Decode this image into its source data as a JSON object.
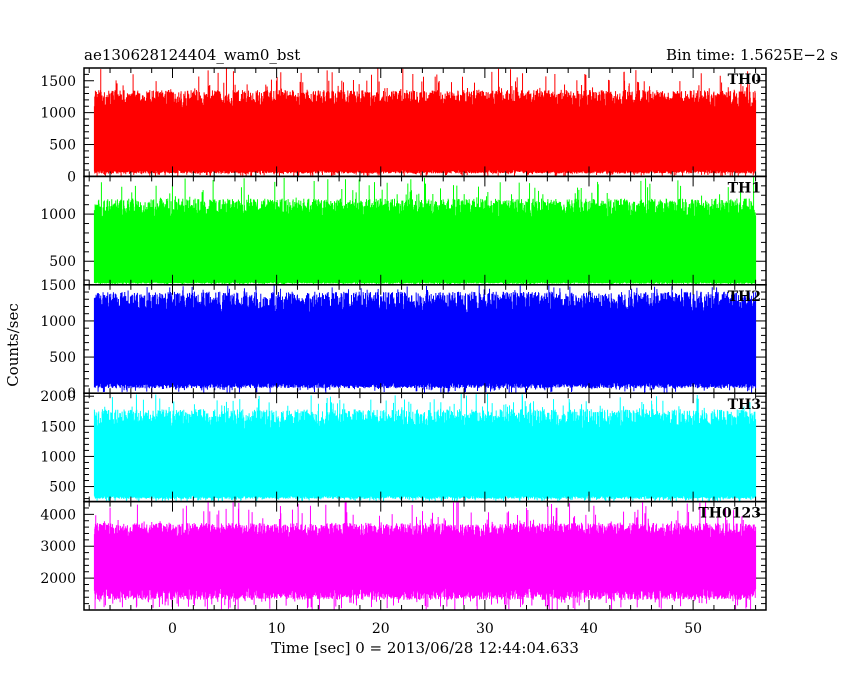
{
  "header": {
    "left": "ae130628124404_wam0_bst",
    "right": "Bin time: 1.5625E−2 s"
  },
  "chart_data": {
    "type": "line",
    "title": "ae130628124404_wam0_bst",
    "subtitle": "Bin time: 1.5625E−2 s",
    "xlabel": "Time [sec] 0 = 2013/06/28 12:44:04.633",
    "ylabel": "Counts/sec",
    "xlim": [
      -8.5,
      57
    ],
    "xticks": [
      0,
      10,
      20,
      30,
      40,
      50
    ],
    "data_x_range": [
      -7.5,
      56
    ],
    "bin_time": 0.015625,
    "grid": false,
    "legend": "none",
    "panels": [
      {
        "name": "TH0",
        "color": "#ff0000",
        "ylim": [
          0,
          1700
        ],
        "yticks": [
          0,
          500,
          1000,
          1500
        ],
        "band": [
          100,
          1150
        ],
        "spike_max": 1700,
        "spike_min": 0
      },
      {
        "name": "TH1",
        "color": "#00ff00",
        "ylim": [
          250,
          1400
        ],
        "yticks": [
          500,
          1000
        ],
        "band": [
          280,
          1020
        ],
        "spike_max": 1400,
        "spike_min": 250
      },
      {
        "name": "TH2",
        "color": "#0000ff",
        "ylim": [
          0,
          1500
        ],
        "yticks": [
          0,
          500,
          1000,
          1500
        ],
        "band": [
          150,
          1200
        ],
        "spike_max": 1500,
        "spike_min": 0
      },
      {
        "name": "TH3",
        "color": "#00ffff",
        "ylim": [
          250,
          2050
        ],
        "yticks": [
          500,
          1000,
          1500,
          2000
        ],
        "band": [
          350,
          1550
        ],
        "spike_max": 2050,
        "spike_min": 250
      },
      {
        "name": "TH0123",
        "color": "#ff00ff",
        "ylim": [
          1000,
          4400
        ],
        "yticks": [
          2000,
          3000,
          4000
        ],
        "band": [
          1700,
          3400
        ],
        "spike_max": 4400,
        "spike_min": 1000
      }
    ]
  }
}
